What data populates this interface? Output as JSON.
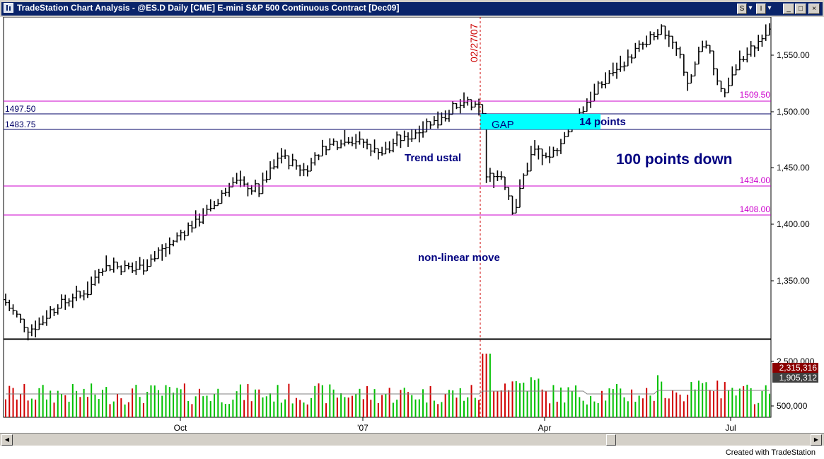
{
  "window": {
    "title": "TradeStation Chart Analysis - @ES.D Daily [CME] E-mini S&P 500 Continuous Contract [Dec09]",
    "buttons": {
      "s": "S",
      "i": "I",
      "dropdown": "▾",
      "minimize": "_",
      "maximize": "□",
      "close": "×"
    }
  },
  "price_axis": {
    "ticks": [
      "1,550.00",
      "1,500.00",
      "1,450.00",
      "1,400.00",
      "1,350.00"
    ]
  },
  "volume_axis": {
    "ticks": [
      "2,500,000",
      "500,000"
    ],
    "badge_volume": "2,315,316",
    "badge_average": "1,905,312",
    "badge_volume_color": "#8b0000",
    "badge_average_color": "#404040"
  },
  "time_axis": {
    "ticks": [
      "Oct",
      "'07",
      "Apr",
      "Jul"
    ]
  },
  "levels": {
    "1509.50": "1509.50",
    "1497.50": "1497.50",
    "1483.75": "1483.75",
    "1434.00": "1434.00",
    "1408.00": "1408.00",
    "magenta": "#cc00cc",
    "navy": "#000066"
  },
  "annotations": {
    "date_marker": "02/27/07",
    "gap": "GAP",
    "gap_points": "14 points",
    "trend": "Trend ustal",
    "points_down": "100 points down",
    "non_linear": "non-linear move",
    "gap_color": "#00ffff",
    "date_color": "#cc0000",
    "text_color": "#000080"
  },
  "footer": "Created with TradeStation",
  "chart_data": {
    "type": "bar",
    "symbol": "@ES.D",
    "interval": "Daily",
    "ylim": [
      1300,
      1580
    ],
    "ohlc_style": "black OHLC bars",
    "reference_lines": [
      1509.5,
      1497.5,
      1483.75,
      1434.0,
      1408.0
    ],
    "marked_date": "02/27/07",
    "gap_zone": [
      1483.75,
      1497.5
    ],
    "price_path_anchors": [
      {
        "x": 0.0,
        "price": 1334
      },
      {
        "x": 0.03,
        "price": 1305
      },
      {
        "x": 0.07,
        "price": 1330
      },
      {
        "x": 0.1,
        "price": 1338
      },
      {
        "x": 0.13,
        "price": 1365
      },
      {
        "x": 0.17,
        "price": 1362
      },
      {
        "x": 0.21,
        "price": 1378
      },
      {
        "x": 0.25,
        "price": 1405
      },
      {
        "x": 0.27,
        "price": 1415
      },
      {
        "x": 0.3,
        "price": 1440
      },
      {
        "x": 0.33,
        "price": 1430
      },
      {
        "x": 0.36,
        "price": 1462
      },
      {
        "x": 0.39,
        "price": 1448
      },
      {
        "x": 0.42,
        "price": 1470
      },
      {
        "x": 0.45,
        "price": 1478
      },
      {
        "x": 0.49,
        "price": 1465
      },
      {
        "x": 0.52,
        "price": 1475
      },
      {
        "x": 0.55,
        "price": 1488
      },
      {
        "x": 0.58,
        "price": 1500
      },
      {
        "x": 0.605,
        "price": 1508
      },
      {
        "x": 0.625,
        "price": 1499
      },
      {
        "x": 0.627,
        "price": 1440
      },
      {
        "x": 0.65,
        "price": 1445
      },
      {
        "x": 0.665,
        "price": 1412
      },
      {
        "x": 0.69,
        "price": 1468
      },
      {
        "x": 0.71,
        "price": 1456
      },
      {
        "x": 0.745,
        "price": 1490
      },
      {
        "x": 0.76,
        "price": 1508
      },
      {
        "x": 0.79,
        "price": 1532
      },
      {
        "x": 0.82,
        "price": 1550
      },
      {
        "x": 0.86,
        "price": 1572
      },
      {
        "x": 0.88,
        "price": 1558
      },
      {
        "x": 0.895,
        "price": 1522
      },
      {
        "x": 0.915,
        "price": 1565
      },
      {
        "x": 0.94,
        "price": 1512
      },
      {
        "x": 0.96,
        "price": 1545
      },
      {
        "x": 0.98,
        "price": 1555
      },
      {
        "x": 1.0,
        "price": 1578
      }
    ],
    "volume": {
      "average_line": 1905312,
      "last_volume": 2315316,
      "spike_date": "02/27/07"
    }
  }
}
